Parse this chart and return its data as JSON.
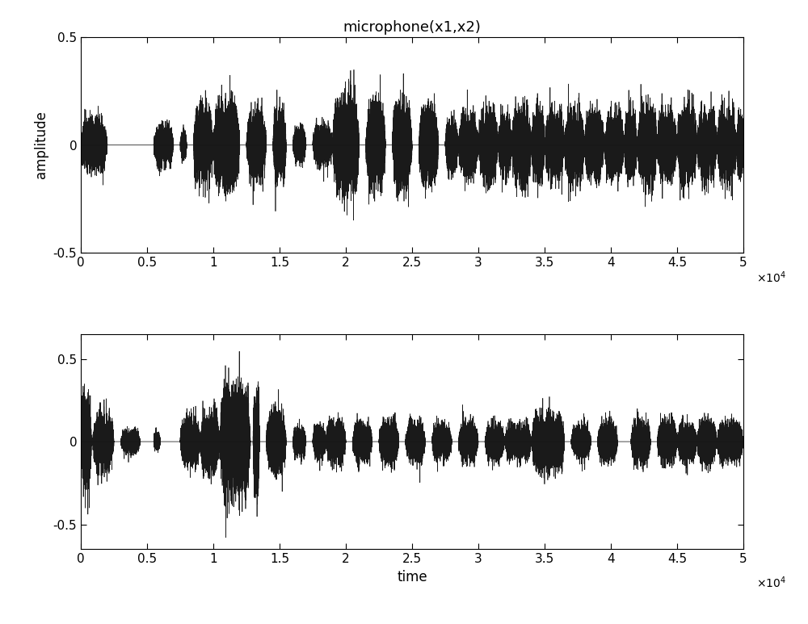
{
  "title": "microphone(x1,x2)",
  "xlabel": "time",
  "ylabel": "amplitude",
  "xlim": [
    0,
    50000
  ],
  "ylim1": [
    -0.5,
    0.5
  ],
  "ylim2": [
    -0.65,
    0.65
  ],
  "xticks": [
    0,
    5000,
    10000,
    15000,
    20000,
    25000,
    30000,
    35000,
    40000,
    45000,
    50000
  ],
  "xtick_labels": [
    "0",
    "0.5",
    "1",
    "1.5",
    "2",
    "2.5",
    "3",
    "3.5",
    "4",
    "4.5",
    "5"
  ],
  "yticks1": [
    -0.5,
    0,
    0.5
  ],
  "yticks2": [
    -0.5,
    0,
    0.5
  ],
  "n_samples": 50000,
  "seed1": 1234,
  "seed2": 5678,
  "line_color": "#1a1a1a",
  "background_color": "#ffffff",
  "title_fontsize": 13,
  "label_fontsize": 12,
  "tick_fontsize": 11
}
